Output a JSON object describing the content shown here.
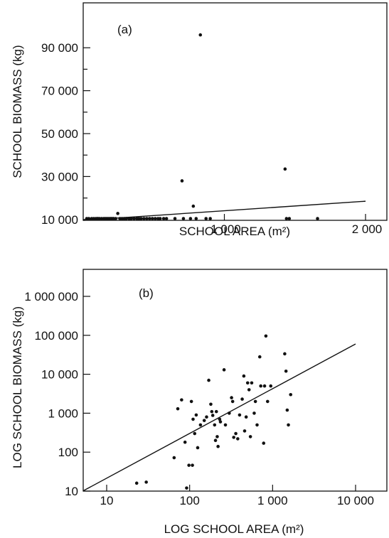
{
  "chart_data": [
    {
      "type": "scatter",
      "panel_label": "(a)",
      "xlabel": "SCHOOL AREA (m²)",
      "ylabel": "SCHOOL BIOMASS (kg)",
      "xlim": [
        0,
        2200
      ],
      "ylim": [
        0,
        100000
      ],
      "x_ticks": [
        1000,
        2000
      ],
      "x_tick_labels": [
        "1 000",
        "2 000"
      ],
      "y_ticks": [
        10000,
        30000,
        50000,
        70000,
        90000
      ],
      "y_tick_labels": [
        "10 000",
        "30 000",
        "50 000",
        "70 000",
        "90 000"
      ],
      "y_minor_ticks": [
        20000,
        40000,
        60000,
        80000
      ],
      "grid": false,
      "fit_line": [
        [
          0,
          0
        ],
        [
          2000,
          18500
        ]
      ],
      "points": [
        [
          25,
          150
        ],
        [
          40,
          200
        ],
        [
          60,
          100
        ],
        [
          75,
          300
        ],
        [
          90,
          500
        ],
        [
          100,
          1200
        ],
        [
          105,
          2600
        ],
        [
          115,
          800
        ],
        [
          130,
          200
        ],
        [
          145,
          600
        ],
        [
          155,
          300
        ],
        [
          165,
          7200
        ],
        [
          175,
          1100
        ],
        [
          185,
          500
        ],
        [
          195,
          1300
        ],
        [
          200,
          700
        ],
        [
          210,
          1000
        ],
        [
          215,
          400
        ],
        [
          230,
          500
        ],
        [
          245,
          12800
        ],
        [
          260,
          300
        ],
        [
          275,
          600
        ],
        [
          290,
          800
        ],
        [
          305,
          2000
        ],
        [
          325,
          2400
        ],
        [
          340,
          1500
        ],
        [
          360,
          400
        ],
        [
          380,
          500
        ],
        [
          395,
          2800
        ],
        [
          410,
          8800
        ],
        [
          430,
          500
        ],
        [
          450,
          900
        ],
        [
          470,
          1000
        ],
        [
          490,
          6200
        ],
        [
          510,
          400
        ],
        [
          530,
          600
        ],
        [
          545,
          5800
        ],
        [
          570,
          700
        ],
        [
          590,
          1100
        ],
        [
          650,
          900
        ],
        [
          700,
          28000
        ],
        [
          710,
          5000
        ],
        [
          760,
          3000
        ],
        [
          780,
          16200
        ],
        [
          800,
          4700
        ],
        [
          830,
          96000
        ],
        [
          870,
          2000
        ],
        [
          900,
          5000
        ],
        [
          1430,
          33500
        ],
        [
          1440,
          100
        ],
        [
          1460,
          700
        ],
        [
          1660,
          2700
        ]
      ]
    },
    {
      "type": "scatter",
      "panel_label": "(b)",
      "xlabel": "LOG SCHOOL AREA (m²)",
      "ylabel": "LOG SCHOOL BIOMASS (kg)",
      "x_scale": "log",
      "y_scale": "log",
      "xlim": [
        10,
        15000
      ],
      "ylim": [
        10,
        3000000
      ],
      "x_ticks": [
        10,
        100,
        1000,
        10000
      ],
      "x_tick_labels": [
        "10",
        "100",
        "1 000",
        "10 000"
      ],
      "y_ticks": [
        10,
        100,
        1000,
        10000,
        100000,
        1000000
      ],
      "y_tick_labels": [
        "10",
        "100",
        "1 000",
        "10 000",
        "100 000",
        "1 000 000"
      ],
      "grid": false,
      "fit_line": [
        [
          10,
          12
        ],
        [
          10000,
          60000
        ]
      ],
      "points": [
        [
          23,
          16
        ],
        [
          30,
          17
        ],
        [
          65,
          72
        ],
        [
          72,
          1300
        ],
        [
          80,
          2200
        ],
        [
          88,
          180
        ],
        [
          92,
          12
        ],
        [
          98,
          46
        ],
        [
          105,
          2000
        ],
        [
          108,
          46
        ],
        [
          110,
          700
        ],
        [
          115,
          300
        ],
        [
          120,
          900
        ],
        [
          125,
          130
        ],
        [
          135,
          500
        ],
        [
          150,
          650
        ],
        [
          160,
          800
        ],
        [
          170,
          7000
        ],
        [
          180,
          1700
        ],
        [
          185,
          1100
        ],
        [
          190,
          880
        ],
        [
          200,
          500
        ],
        [
          205,
          200
        ],
        [
          210,
          1100
        ],
        [
          215,
          250
        ],
        [
          220,
          140
        ],
        [
          230,
          700
        ],
        [
          235,
          600
        ],
        [
          260,
          13000
        ],
        [
          270,
          500
        ],
        [
          300,
          1000
        ],
        [
          320,
          2500
        ],
        [
          330,
          2000
        ],
        [
          340,
          240
        ],
        [
          360,
          300
        ],
        [
          380,
          220
        ],
        [
          400,
          900
        ],
        [
          430,
          2300
        ],
        [
          450,
          9000
        ],
        [
          460,
          350
        ],
        [
          480,
          800
        ],
        [
          500,
          6000
        ],
        [
          520,
          4000
        ],
        [
          540,
          250
        ],
        [
          560,
          6000
        ],
        [
          600,
          1000
        ],
        [
          620,
          2000
        ],
        [
          650,
          500
        ],
        [
          700,
          28000
        ],
        [
          720,
          5000
        ],
        [
          780,
          170
        ],
        [
          800,
          5000
        ],
        [
          830,
          96000
        ],
        [
          870,
          2000
        ],
        [
          950,
          5000
        ],
        [
          1400,
          33500
        ],
        [
          1450,
          12000
        ],
        [
          1500,
          1200
        ],
        [
          1550,
          500
        ],
        [
          1650,
          3000
        ]
      ]
    }
  ]
}
